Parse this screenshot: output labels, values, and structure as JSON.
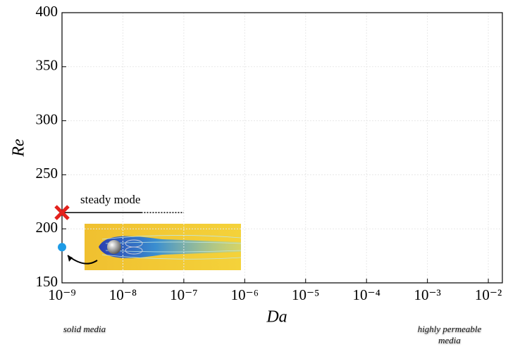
{
  "chart_data": {
    "type": "scatter",
    "xlabel": "Da",
    "ylabel": "Re",
    "xscale": "log",
    "xlim": [
      1e-09,
      0.017
    ],
    "ylim": [
      150,
      400
    ],
    "xticks": [
      {
        "value": 1e-09,
        "label": "10⁻⁹"
      },
      {
        "value": 1e-08,
        "label": "10⁻⁸"
      },
      {
        "value": 1e-07,
        "label": "10⁻⁷"
      },
      {
        "value": 1e-06,
        "label": "10⁻⁶"
      },
      {
        "value": 1e-05,
        "label": "10⁻⁵"
      },
      {
        "value": 0.0001,
        "label": "10⁻⁴"
      },
      {
        "value": 0.001,
        "label": "10⁻³"
      },
      {
        "value": 0.01,
        "label": "10⁻²"
      }
    ],
    "yticks": [
      150,
      200,
      250,
      300,
      350,
      400
    ],
    "grid": true,
    "points": [
      {
        "x": 1e-09,
        "y": 215,
        "marker": "x",
        "color": "#e3211c"
      },
      {
        "x": 1e-09,
        "y": 183,
        "marker": "o",
        "color": "#1e9be6"
      }
    ],
    "steady_mode": {
      "text": "steady mode",
      "y": 215,
      "x_solid_end": 2e-08,
      "x_dotted_end": 1e-07
    },
    "notes": [
      "solid media",
      "highly permeable media"
    ]
  }
}
